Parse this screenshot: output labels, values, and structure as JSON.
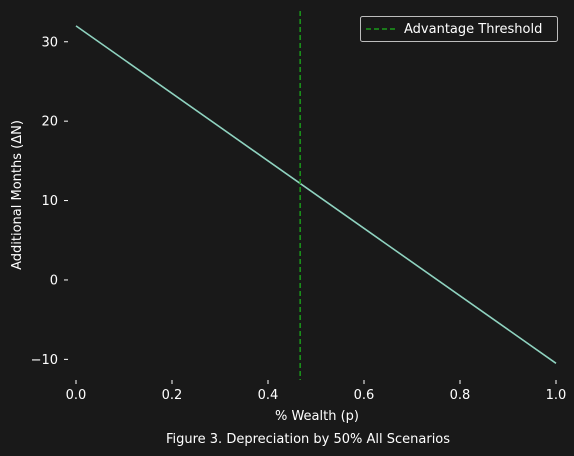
{
  "chart_data": {
    "type": "line",
    "title": "",
    "caption": "Figure 3. Depreciation by 50% All Scenarios",
    "xlabel": "% Wealth (p)",
    "ylabel": "Additional Months (ΔN)",
    "xlim": [
      -0.025,
      1.025
    ],
    "ylim": [
      -12.6,
      34.0
    ],
    "x_ticks": [
      0.0,
      0.2,
      0.4,
      0.6,
      0.8,
      1.0
    ],
    "x_tick_labels": [
      "0.0",
      "0.2",
      "0.4",
      "0.6",
      "0.8",
      "1.0"
    ],
    "y_ticks": [
      -10,
      0,
      10,
      20,
      30
    ],
    "y_tick_labels": [
      "−10",
      "0",
      "10",
      "20",
      "30"
    ],
    "grid": false,
    "legend_position": "top-right",
    "series": [
      {
        "x": [
          0.0,
          1.0
        ],
        "values": [
          32.0,
          -10.5
        ],
        "color": "#8fd3c0",
        "style": "solid"
      }
    ],
    "vlines": [
      {
        "name": "Advantage Threshold",
        "x": 0.467,
        "color": "#1a9a1a",
        "style": "dashed"
      }
    ]
  }
}
